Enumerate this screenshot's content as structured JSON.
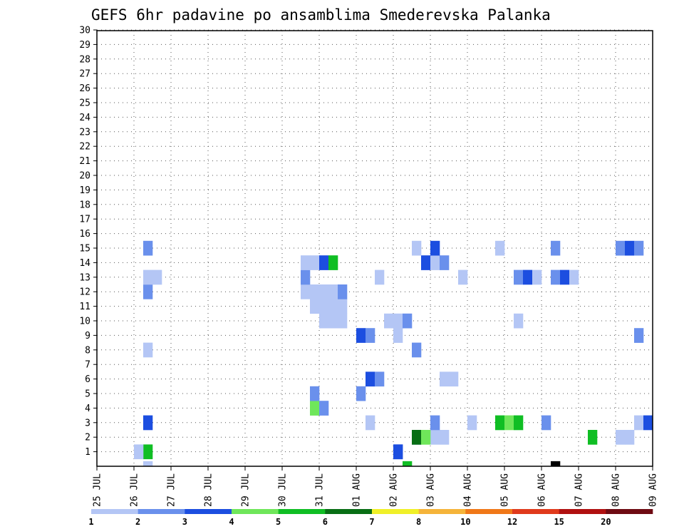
{
  "chart_data": {
    "type": "heatmap",
    "title": "GEFS 6hr padavine po ansamblima Smederevska Palanka",
    "xlabel": "",
    "ylabel": "",
    "x_tick_labels": [
      "25 JUL",
      "26 JUL",
      "27 JUL",
      "28 JUL",
      "29 JUL",
      "30 JUL",
      "31 JUL",
      "01 AUG",
      "02 AUG",
      "03 AUG",
      "04 AUG",
      "05 AUG",
      "06 AUG",
      "07 AUG",
      "08 AUG",
      "09 AUG"
    ],
    "y_tick_labels": [
      "1",
      "2",
      "3",
      "4",
      "5",
      "6",
      "7",
      "8",
      "9",
      "10",
      "11",
      "12",
      "13",
      "14",
      "15",
      "16",
      "17",
      "18",
      "19",
      "20",
      "21",
      "22",
      "23",
      "24",
      "25",
      "26",
      "27",
      "28",
      "29",
      "30"
    ],
    "x_range_steps": [
      0,
      60
    ],
    "y_range_members": [
      0,
      30
    ],
    "grid": true,
    "colorbar_labels": [
      "1",
      "2",
      "3",
      "4",
      "5",
      "6",
      "7",
      "8",
      "10",
      "12",
      "15",
      "20"
    ],
    "colorbar_colors": [
      "#b4c6f5",
      "#6a90ec",
      "#1c4ee0",
      "#6fe65a",
      "#10be24",
      "#086e14",
      "#f0f028",
      "#f5b43a",
      "#f07818",
      "#e03a1c",
      "#b01010",
      "#6e0a12"
    ],
    "cells": [
      [
        5,
        0,
        0
      ],
      [
        33,
        0,
        4
      ],
      [
        49,
        0,
        12
      ],
      [
        32,
        1,
        2
      ],
      [
        5,
        1,
        4
      ],
      [
        36,
        2,
        0
      ],
      [
        37,
        2,
        0
      ],
      [
        34,
        2,
        1
      ],
      [
        53,
        2,
        4
      ],
      [
        56,
        2,
        0
      ],
      [
        57,
        2,
        0
      ],
      [
        32,
        1,
        2
      ],
      [
        34,
        2,
        5
      ],
      [
        35,
        2,
        3
      ],
      [
        5,
        3,
        2
      ],
      [
        29,
        3,
        0
      ],
      [
        36,
        3,
        1
      ],
      [
        40,
        3,
        0
      ],
      [
        43,
        3,
        4
      ],
      [
        44,
        3,
        3
      ],
      [
        45,
        3,
        4
      ],
      [
        48,
        3,
        1
      ],
      [
        58,
        3,
        0
      ],
      [
        59,
        3,
        2
      ],
      [
        4,
        1,
        0
      ],
      [
        23,
        4,
        3
      ],
      [
        24,
        4,
        1
      ],
      [
        23,
        5,
        1
      ],
      [
        28,
        5,
        1
      ],
      [
        38,
        6,
        0
      ],
      [
        37,
        6,
        0
      ],
      [
        29,
        6,
        2
      ],
      [
        30,
        6,
        1
      ],
      [
        5,
        8,
        0
      ],
      [
        34,
        8,
        1
      ],
      [
        32,
        9,
        0
      ],
      [
        28,
        9,
        2
      ],
      [
        29,
        9,
        1
      ],
      [
        58,
        9,
        1
      ],
      [
        32,
        10,
        0
      ],
      [
        33,
        10,
        1
      ],
      [
        45,
        10,
        0
      ],
      [
        24,
        10,
        0
      ],
      [
        25,
        10,
        0
      ],
      [
        26,
        10,
        0
      ],
      [
        31,
        10,
        0
      ],
      [
        23,
        11,
        0
      ],
      [
        24,
        11,
        0
      ],
      [
        25,
        11,
        0
      ],
      [
        26,
        11,
        0
      ],
      [
        5,
        12,
        1
      ],
      [
        22,
        12,
        0
      ],
      [
        23,
        12,
        0
      ],
      [
        24,
        12,
        0
      ],
      [
        25,
        12,
        0
      ],
      [
        26,
        12,
        1
      ],
      [
        5,
        13,
        0
      ],
      [
        6,
        13,
        0
      ],
      [
        39,
        13,
        0
      ],
      [
        22,
        13,
        1
      ],
      [
        30,
        13,
        0
      ],
      [
        45,
        13,
        1
      ],
      [
        46,
        13,
        2
      ],
      [
        47,
        13,
        0
      ],
      [
        49,
        13,
        1
      ],
      [
        50,
        13,
        2
      ],
      [
        51,
        13,
        0
      ],
      [
        22,
        14,
        0
      ],
      [
        23,
        14,
        0
      ],
      [
        24,
        14,
        2
      ],
      [
        25,
        14,
        4
      ],
      [
        35,
        14,
        2
      ],
      [
        36,
        14,
        0
      ],
      [
        37,
        14,
        1
      ],
      [
        5,
        15,
        1
      ],
      [
        34,
        15,
        0
      ],
      [
        36,
        15,
        2
      ],
      [
        43,
        15,
        0
      ],
      [
        49,
        15,
        1
      ],
      [
        56,
        15,
        1
      ],
      [
        57,
        15,
        2
      ],
      [
        58,
        15,
        1
      ]
    ]
  }
}
